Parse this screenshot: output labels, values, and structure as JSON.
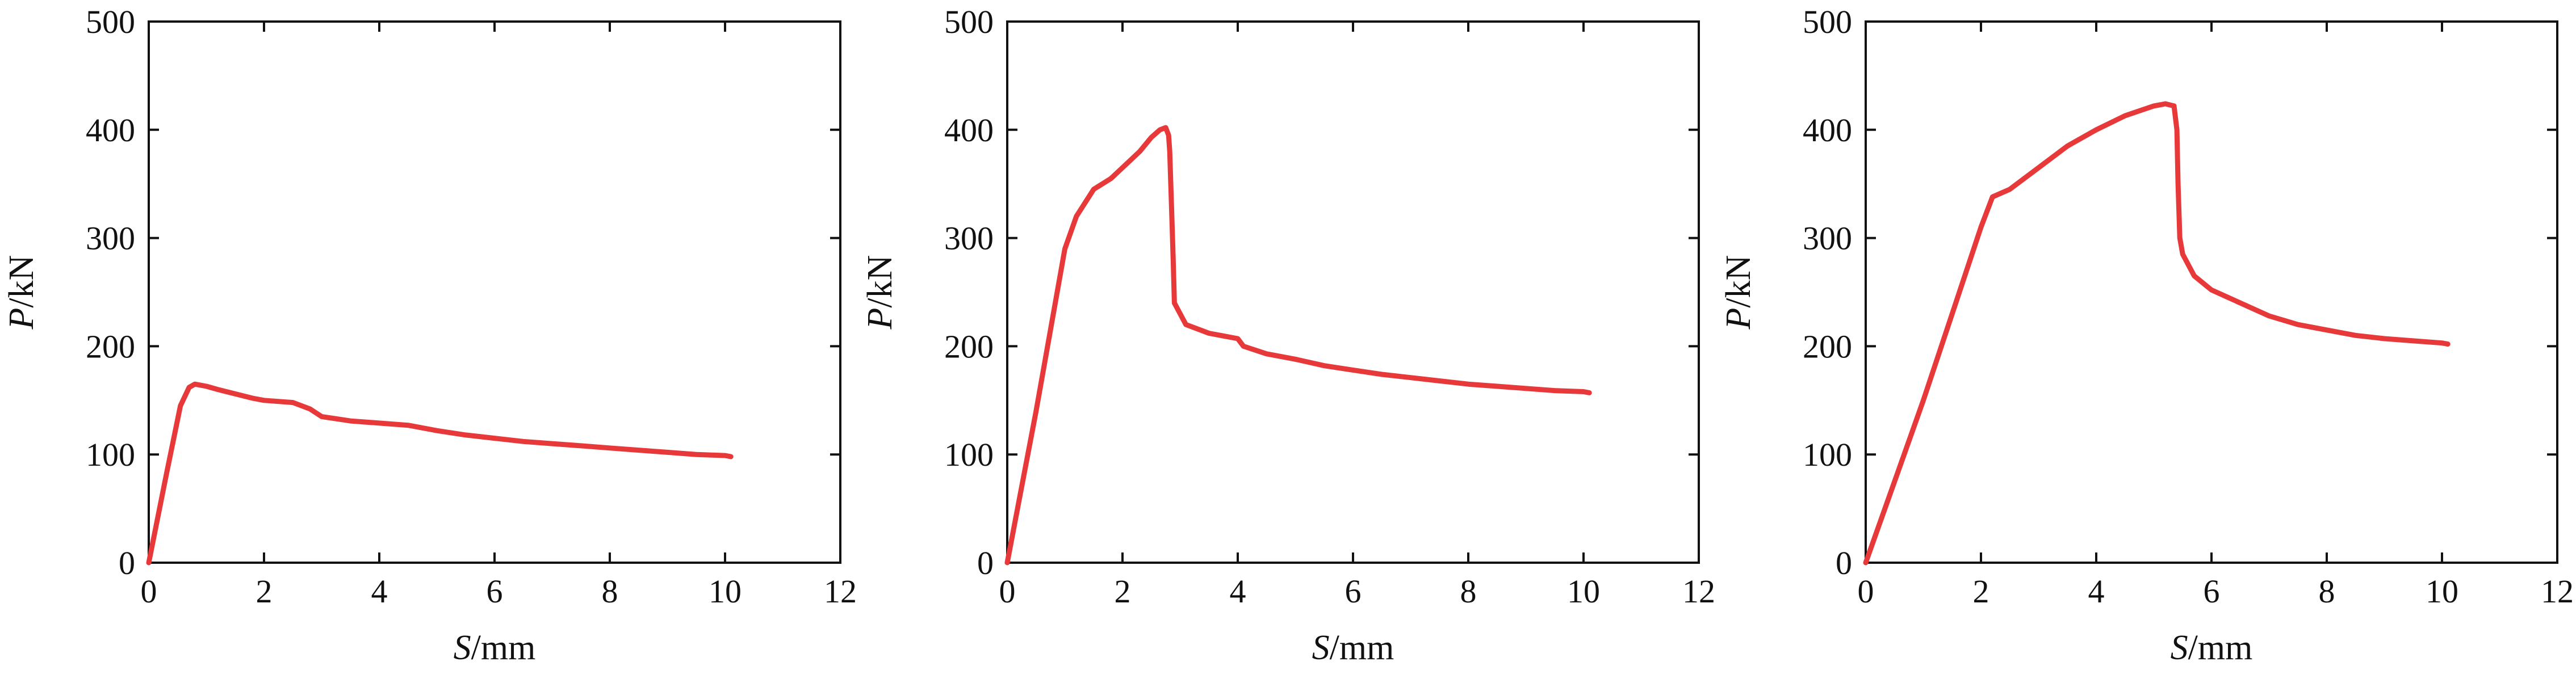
{
  "chart_data": [
    {
      "type": "line",
      "xlabel_var": "S",
      "xlabel_unit": "/mm",
      "ylabel_var": "P",
      "ylabel_unit": "/kN",
      "xlim": [
        0,
        12
      ],
      "ylim": [
        0,
        500
      ],
      "xticks": [
        "0",
        "2",
        "4",
        "6",
        "8",
        "10",
        "12"
      ],
      "yticks": [
        "0",
        "100",
        "200",
        "300",
        "400",
        "500"
      ],
      "grid": false,
      "color": "#e8393a",
      "series": [
        {
          "x": [
            0,
            0.3,
            0.55,
            0.7,
            0.8,
            1.0,
            1.2,
            1.5,
            1.8,
            2.0,
            2.5,
            2.8,
            3.0,
            3.5,
            4.0,
            4.5,
            5.0,
            5.5,
            6.0,
            6.5,
            7.0,
            7.5,
            8.0,
            8.5,
            9.0,
            9.5,
            10.0,
            10.1
          ],
          "y": [
            0,
            80,
            145,
            162,
            165,
            163,
            160,
            156,
            152,
            150,
            148,
            142,
            135,
            131,
            129,
            127,
            122,
            118,
            115,
            112,
            110,
            108,
            106,
            104,
            102,
            100,
            99,
            98
          ]
        }
      ]
    },
    {
      "type": "line",
      "xlabel_var": "S",
      "xlabel_unit": "/mm",
      "ylabel_var": "P",
      "ylabel_unit": "/kN",
      "xlim": [
        0,
        12
      ],
      "ylim": [
        0,
        500
      ],
      "xticks": [
        "0",
        "2",
        "4",
        "6",
        "8",
        "10",
        "12"
      ],
      "yticks": [
        "0",
        "100",
        "200",
        "300",
        "400",
        "500"
      ],
      "grid": false,
      "color": "#e8393a",
      "series": [
        {
          "x": [
            0,
            0.5,
            1.0,
            1.2,
            1.5,
            1.8,
            2.0,
            2.3,
            2.5,
            2.65,
            2.75,
            2.8,
            2.82,
            2.85,
            2.88,
            2.9,
            3.1,
            3.5,
            4.0,
            4.1,
            4.5,
            5.0,
            5.5,
            6.0,
            6.5,
            7.0,
            7.5,
            8.0,
            8.5,
            9.0,
            9.5,
            10.0,
            10.1
          ],
          "y": [
            0,
            140,
            290,
            320,
            345,
            355,
            365,
            380,
            393,
            400,
            402,
            395,
            380,
            330,
            280,
            240,
            220,
            212,
            207,
            200,
            193,
            188,
            182,
            178,
            174,
            171,
            168,
            165,
            163,
            161,
            159,
            158,
            157
          ]
        }
      ]
    },
    {
      "type": "line",
      "xlabel_var": "S",
      "xlabel_unit": "/mm",
      "ylabel_var": "P",
      "ylabel_unit": "/kN",
      "xlim": [
        0,
        12
      ],
      "ylim": [
        0,
        500
      ],
      "xticks": [
        "0",
        "2",
        "4",
        "6",
        "8",
        "10",
        "12"
      ],
      "yticks": [
        "0",
        "100",
        "200",
        "300",
        "400",
        "500"
      ],
      "grid": false,
      "color": "#e8393a",
      "series": [
        {
          "x": [
            0,
            0.5,
            1.0,
            1.5,
            2.0,
            2.2,
            2.5,
            3.0,
            3.5,
            4.0,
            4.5,
            5.0,
            5.2,
            5.35,
            5.4,
            5.42,
            5.45,
            5.5,
            5.7,
            6.0,
            6.5,
            7.0,
            7.5,
            8.0,
            8.5,
            9.0,
            9.5,
            10.0,
            10.1
          ],
          "y": [
            0,
            75,
            150,
            230,
            310,
            338,
            345,
            365,
            385,
            400,
            413,
            422,
            424,
            422,
            400,
            350,
            300,
            285,
            265,
            252,
            240,
            228,
            220,
            215,
            210,
            207,
            205,
            203,
            202
          ]
        }
      ]
    }
  ]
}
